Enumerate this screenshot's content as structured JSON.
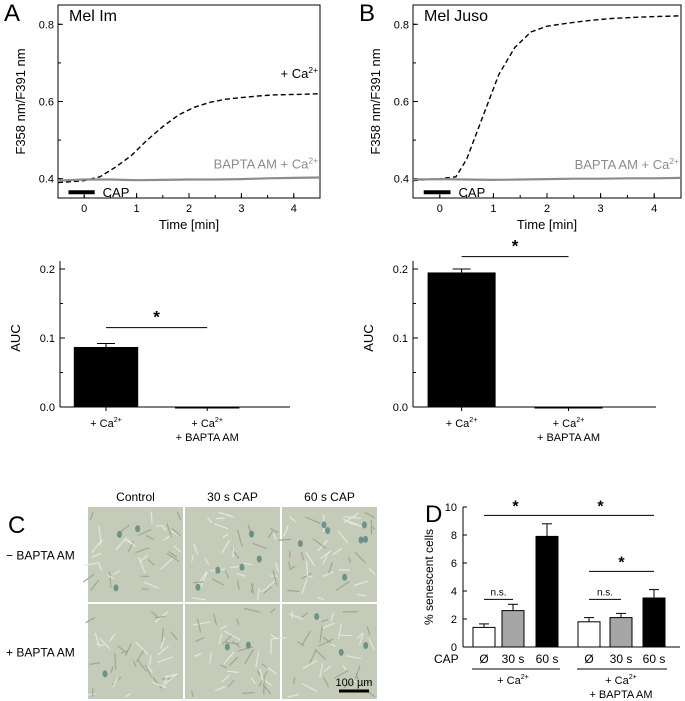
{
  "panels": {
    "A": {
      "letter": "A",
      "cell_line": "Mel Im"
    },
    "B": {
      "letter": "B",
      "cell_line": "Mel Juso"
    },
    "C": {
      "letter": "C",
      "column_labels": [
        "Control",
        "30 s CAP",
        "60 s CAP"
      ],
      "row_labels": [
        "− BAPTA AM",
        "+ BAPTA AM"
      ],
      "scale_bar": "100 µm"
    },
    "D": {
      "letter": "D"
    }
  },
  "colors": {
    "ca_trace": "#000000",
    "bapta_trace": "#8c8c8c",
    "gray_bar": "#a6a6a6",
    "micrograph": "#c5cbb9"
  },
  "chart_data": [
    {
      "id": "A-trace",
      "type": "line",
      "xlabel": "Time [min]",
      "ylabel": "F358 nm/F391 nm",
      "xlim": [
        -0.5,
        4.5
      ],
      "ylim": [
        0.35,
        0.85
      ],
      "xticks": [
        "0",
        "1",
        "2",
        "3",
        "4"
      ],
      "yticks": [
        "0.4",
        "0.6",
        "0.8"
      ],
      "annotation": "CAP",
      "annotation_range": [
        -0.3,
        0.2
      ],
      "series": [
        {
          "name": "+ Ca2+",
          "style": "dashed",
          "x": [
            -0.5,
            0,
            0.3,
            0.6,
            0.9,
            1.2,
            1.5,
            1.8,
            2.1,
            2.4,
            2.7,
            3.0,
            3.3,
            3.6,
            3.9,
            4.2,
            4.5
          ],
          "y": [
            0.39,
            0.395,
            0.405,
            0.43,
            0.46,
            0.5,
            0.535,
            0.565,
            0.585,
            0.598,
            0.606,
            0.61,
            0.614,
            0.617,
            0.618,
            0.619,
            0.62
          ]
        },
        {
          "name": "BAPTA AM + Ca2+",
          "style": "solid",
          "x": [
            -0.5,
            0,
            0.5,
            1,
            1.5,
            2,
            2.5,
            3,
            3.5,
            4,
            4.5
          ],
          "y": [
            0.395,
            0.398,
            0.398,
            0.396,
            0.397,
            0.398,
            0.398,
            0.399,
            0.401,
            0.402,
            0.403
          ]
        }
      ]
    },
    {
      "id": "B-trace",
      "type": "line",
      "xlabel": "Time [min]",
      "ylabel": "F358 nm/F391 nm",
      "xlim": [
        -0.5,
        4.5
      ],
      "ylim": [
        0.35,
        0.85
      ],
      "xticks": [
        "0",
        "1",
        "2",
        "3",
        "4"
      ],
      "yticks": [
        "0.4",
        "0.6",
        "0.8"
      ],
      "annotation": "CAP",
      "annotation_range": [
        -0.3,
        0.2
      ],
      "series": [
        {
          "name": "+ Ca2+",
          "style": "dashed",
          "x": [
            -0.5,
            0,
            0.3,
            0.5,
            0.8,
            1.1,
            1.4,
            1.7,
            2.0,
            2.4,
            2.8,
            3.2,
            3.6,
            4.0,
            4.5
          ],
          "y": [
            0.395,
            0.4,
            0.405,
            0.45,
            0.56,
            0.67,
            0.74,
            0.78,
            0.795,
            0.803,
            0.81,
            0.815,
            0.818,
            0.82,
            0.822
          ]
        },
        {
          "name": "BAPTA AM + Ca2+",
          "style": "solid",
          "x": [
            -0.5,
            0,
            0.5,
            1,
            1.5,
            2,
            2.5,
            3,
            3.5,
            4,
            4.5
          ],
          "y": [
            0.398,
            0.399,
            0.398,
            0.397,
            0.398,
            0.399,
            0.4,
            0.4,
            0.401,
            0.401,
            0.402
          ]
        }
      ]
    },
    {
      "id": "A-auc",
      "type": "bar",
      "ylabel": "AUC",
      "ylim": [
        0,
        0.2
      ],
      "yticks": [
        "0.0",
        "0.1",
        "0.2"
      ],
      "categories": [
        "+ Ca2+",
        "+ Ca2+ + BAPTA AM"
      ],
      "values": [
        0.087,
        -0.002
      ],
      "errors": [
        0.005,
        0.001
      ],
      "significance": "*"
    },
    {
      "id": "B-auc",
      "type": "bar",
      "ylabel": "AUC",
      "ylim": [
        0,
        0.2
      ],
      "yticks": [
        "0.0",
        "0.1",
        "0.2"
      ],
      "categories": [
        "+ Ca2+",
        "+ Ca2+ + BAPTA AM"
      ],
      "values": [
        0.195,
        0.0
      ],
      "errors": [
        0.005,
        0.0
      ],
      "significance": "*"
    },
    {
      "id": "D-senescence",
      "type": "bar",
      "ylabel": "% senescent cells",
      "ylim": [
        0,
        10
      ],
      "yticks": [
        "0",
        "2",
        "4",
        "6",
        "8",
        "10"
      ],
      "axis_label": "CAP",
      "categories": [
        "Ø",
        "30 s",
        "60 s",
        "Ø",
        "30 s",
        "60 s"
      ],
      "groups": [
        "+ Ca2+",
        "+ Ca2+ + BAPTA AM"
      ],
      "values": [
        1.4,
        2.6,
        7.9,
        1.8,
        2.1,
        3.5
      ],
      "errors": [
        0.25,
        0.45,
        0.9,
        0.3,
        0.3,
        0.6
      ],
      "significance": {
        "star": "*",
        "ns": "n.s."
      }
    }
  ]
}
